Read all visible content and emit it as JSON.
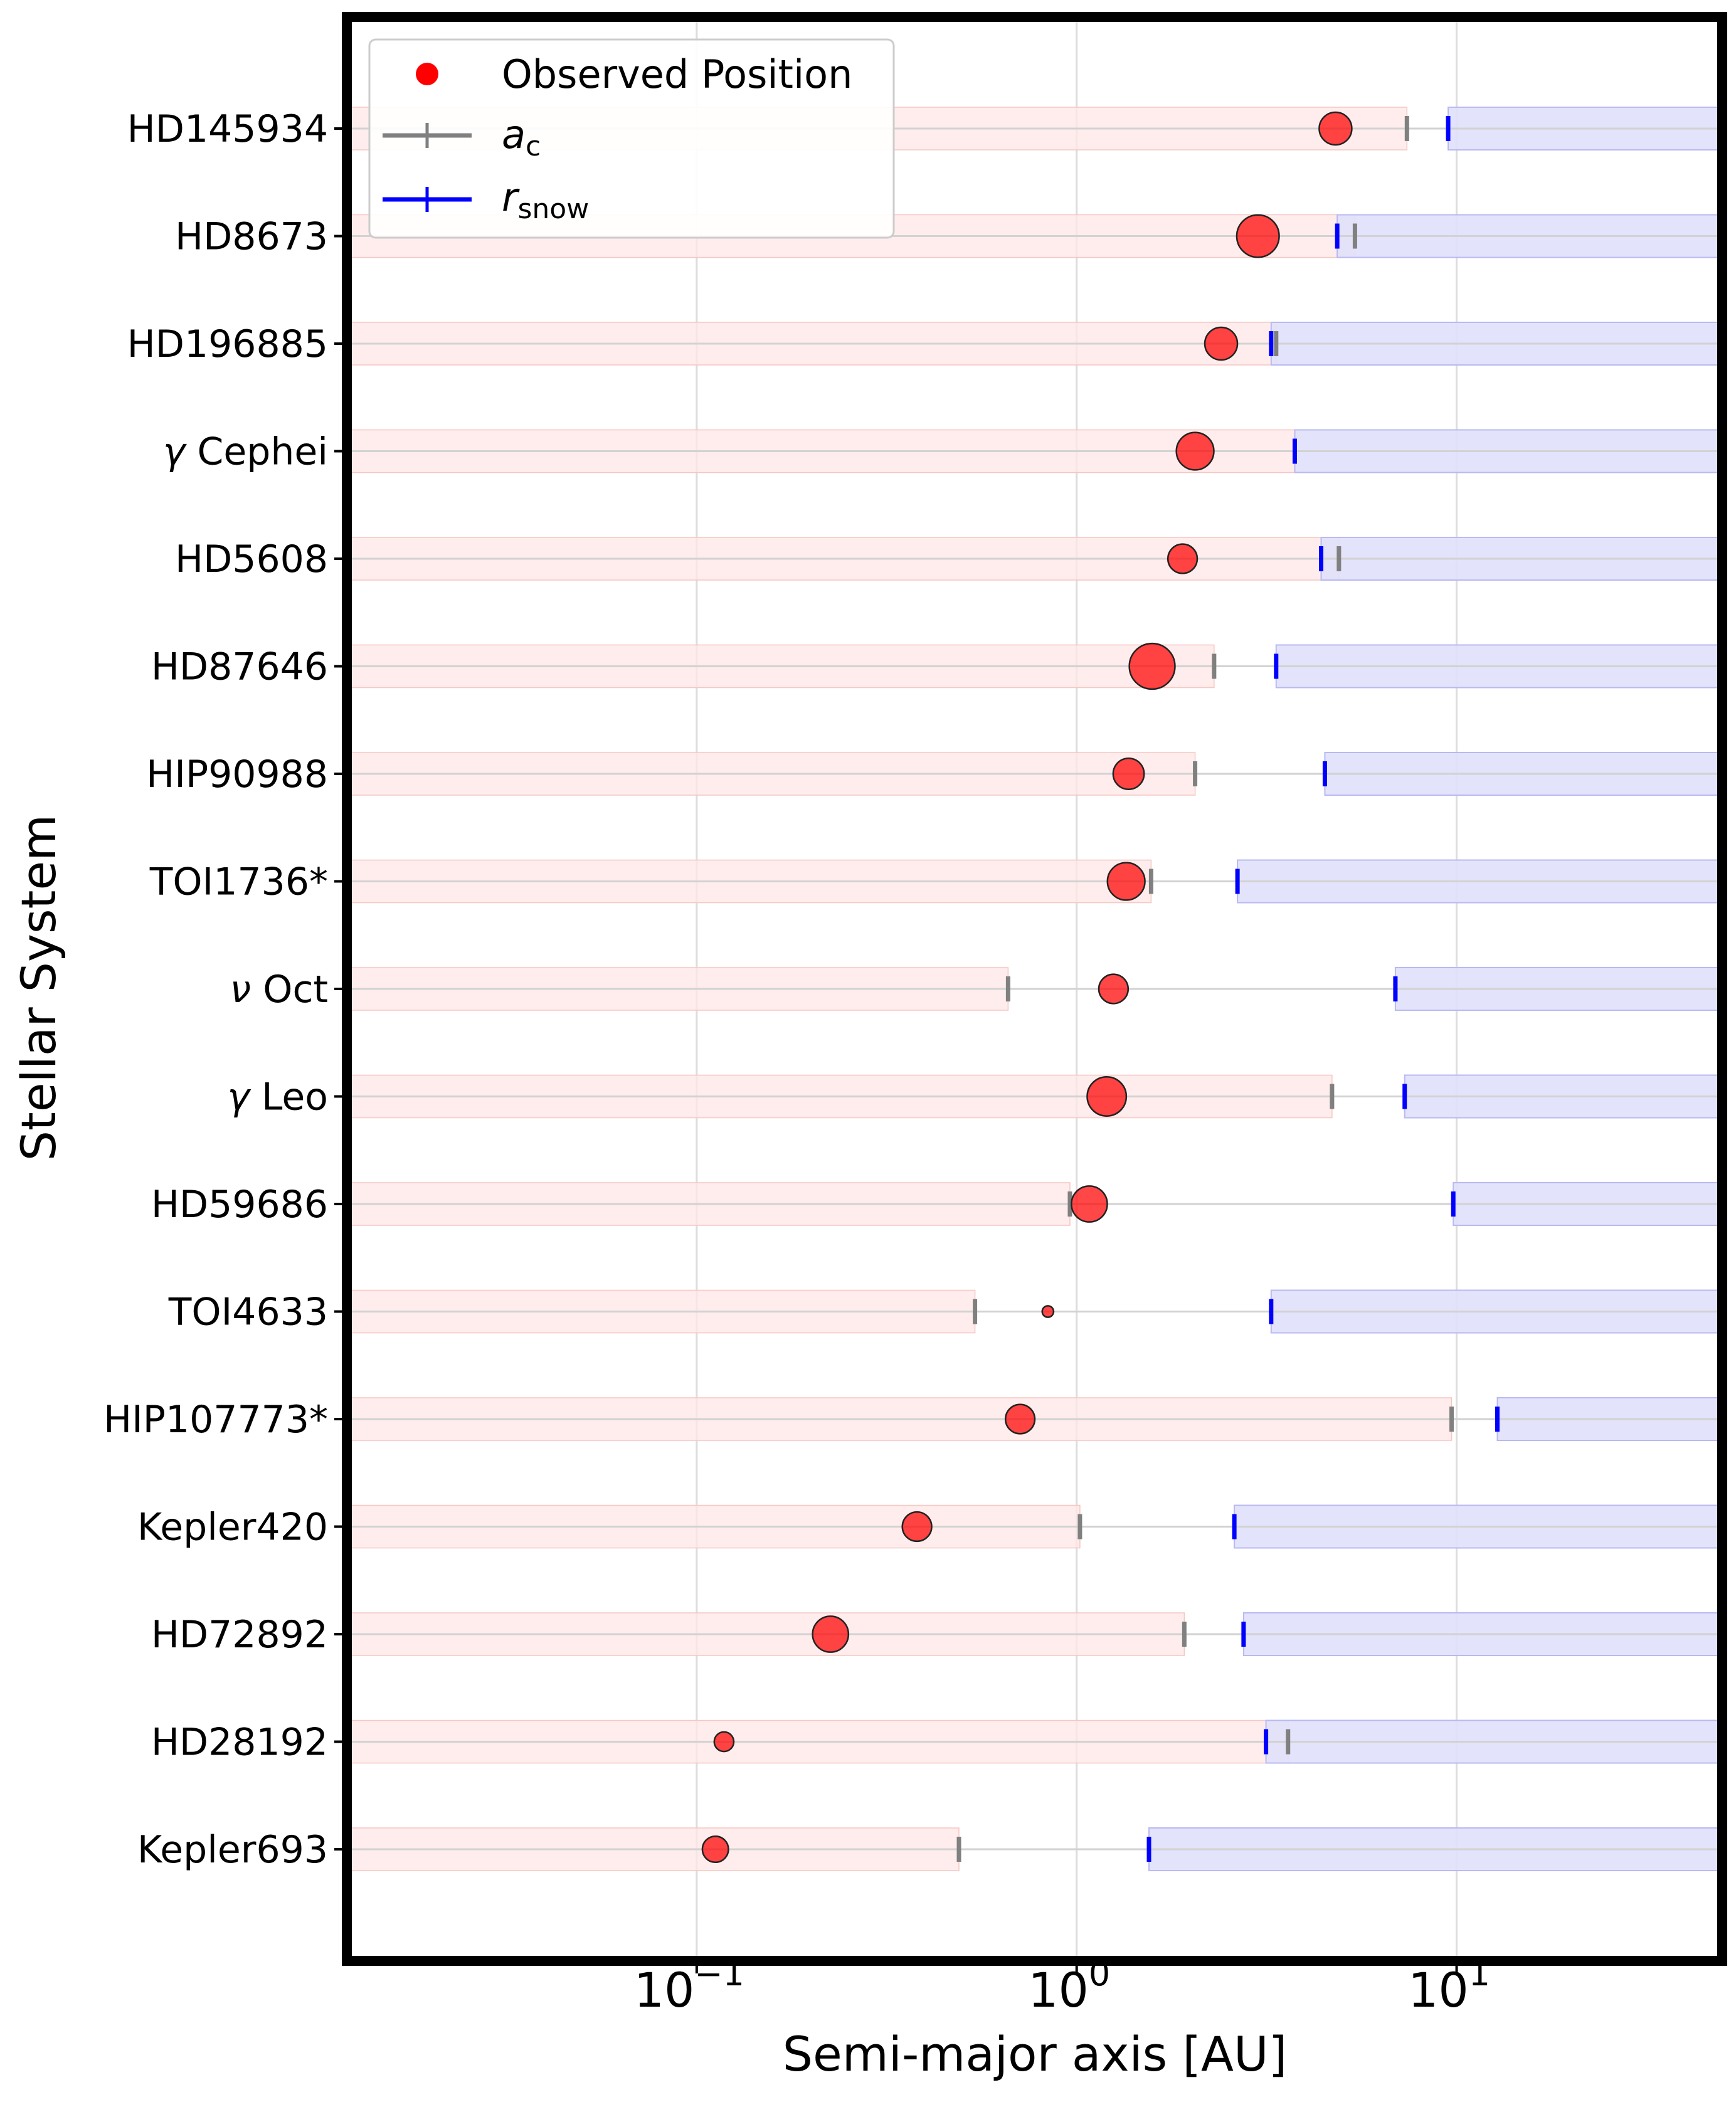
{
  "chart_data": {
    "type": "scatter",
    "xscale": "log",
    "xlim": [
      0.012,
      50
    ],
    "xlabel": "Semi-major axis [AU]",
    "ylabel": "Stellar System",
    "xticks": [
      {
        "value": 0.1,
        "base": "10",
        "exp": "−1"
      },
      {
        "value": 1,
        "base": "10",
        "exp": "0"
      },
      {
        "value": 10,
        "base": "10",
        "exp": "1"
      }
    ],
    "grid": "vertical",
    "legend": {
      "position": "top-left",
      "entries": [
        {
          "key": "observed",
          "label": "Observed Position",
          "color": "#ff0000"
        },
        {
          "key": "ac",
          "label_main": "a",
          "label_sub": "c",
          "color": "#808080"
        },
        {
          "key": "rsnow",
          "label_main": "r",
          "label_sub": "snow",
          "color": "#0000ff"
        }
      ]
    },
    "colors": {
      "observed": "#ff0000",
      "ac": "#808080",
      "rsnow": "#0000ff",
      "inner_band": "#fde7e5",
      "outer_band": "#e0e0fb"
    },
    "systems": [
      {
        "label": "HD145934",
        "greek": "",
        "observed": 4.8,
        "ac": 7.4,
        "rsnow": 9.5,
        "size": 1.0
      },
      {
        "label": "HD8673",
        "greek": "",
        "observed": 3.0,
        "ac": 5.4,
        "rsnow": 4.85,
        "size": 1.3
      },
      {
        "label": "HD196885",
        "greek": "",
        "observed": 2.4,
        "ac": 3.35,
        "rsnow": 3.25,
        "size": 1.0
      },
      {
        "label": "Cephei",
        "greek": "γ",
        "observed": 2.05,
        "ac": 3.75,
        "rsnow": 3.75,
        "size": 1.15
      },
      {
        "label": "HD5608",
        "greek": "",
        "observed": 1.9,
        "ac": 4.9,
        "rsnow": 4.4,
        "size": 0.9
      },
      {
        "label": "HD87646",
        "greek": "",
        "observed": 1.58,
        "ac": 2.3,
        "rsnow": 3.35,
        "size": 1.4
      },
      {
        "label": "HIP90988",
        "greek": "",
        "observed": 1.37,
        "ac": 2.05,
        "rsnow": 4.5,
        "size": 0.95
      },
      {
        "label": "TOI1736*",
        "greek": "",
        "observed": 1.35,
        "ac": 1.57,
        "rsnow": 2.65,
        "size": 1.15
      },
      {
        "label": "Oct",
        "greek": "ν",
        "observed": 1.25,
        "ac": 0.66,
        "rsnow": 6.9,
        "size": 0.9
      },
      {
        "label": "Leo",
        "greek": "γ",
        "observed": 1.2,
        "ac": 4.7,
        "rsnow": 7.3,
        "size": 1.2
      },
      {
        "label": "HD59686",
        "greek": "",
        "observed": 1.08,
        "ac": 0.96,
        "rsnow": 9.8,
        "size": 1.1
      },
      {
        "label": "TOI4633",
        "greek": "",
        "observed": 0.84,
        "ac": 0.54,
        "rsnow": 3.25,
        "size": 0.35
      },
      {
        "label": "HIP107773*",
        "greek": "",
        "observed": 0.71,
        "ac": 9.7,
        "rsnow": 12.8,
        "size": 0.9
      },
      {
        "label": "Kepler420",
        "greek": "",
        "observed": 0.38,
        "ac": 1.02,
        "rsnow": 2.6,
        "size": 0.9
      },
      {
        "label": "HD72892",
        "greek": "",
        "observed": 0.225,
        "ac": 1.92,
        "rsnow": 2.75,
        "size": 1.1
      },
      {
        "label": "HD28192",
        "greek": "",
        "observed": 0.118,
        "ac": 3.6,
        "rsnow": 3.15,
        "size": 0.6
      },
      {
        "label": "Kepler693",
        "greek": "",
        "observed": 0.112,
        "ac": 0.49,
        "rsnow": 1.55,
        "size": 0.8
      }
    ]
  }
}
